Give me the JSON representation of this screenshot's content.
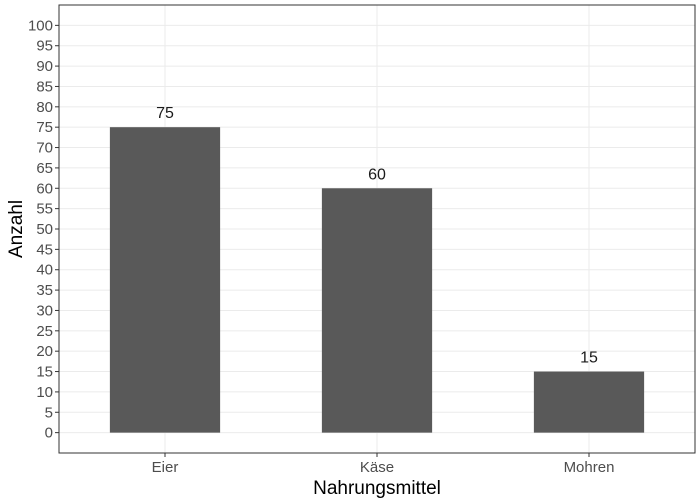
{
  "chart_data": {
    "type": "bar",
    "categories": [
      "Eier",
      "Käse",
      "Mohren"
    ],
    "values": [
      75,
      60,
      15
    ],
    "data_labels": [
      "75",
      "60",
      "15"
    ],
    "xlabel": "Nahrungsmittel",
    "ylabel": "Anzahl",
    "ylim": [
      -5,
      105
    ],
    "yticks": [
      0,
      5,
      10,
      15,
      20,
      25,
      30,
      35,
      40,
      45,
      50,
      55,
      60,
      65,
      70,
      75,
      80,
      85,
      90,
      95,
      100
    ],
    "grid": true,
    "legend": "none"
  },
  "colors": {
    "bar": "#595959",
    "grid": "#ebebeb",
    "panel_border": "#333333",
    "tick_text": "#4d4d4d",
    "label_text": "#1a1a1a"
  }
}
